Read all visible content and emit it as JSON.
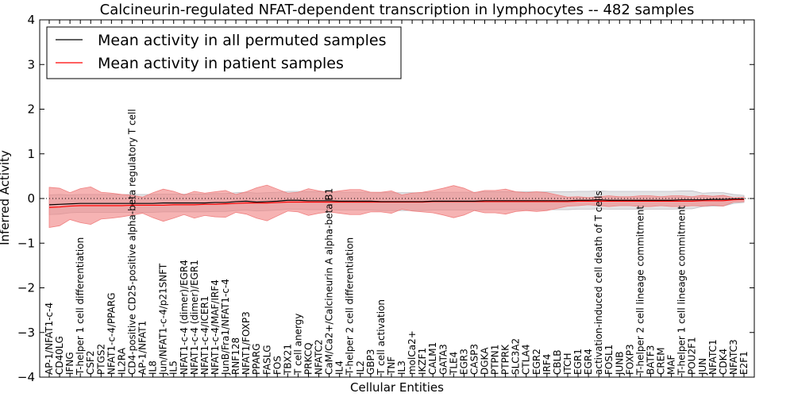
{
  "chart_data": {
    "type": "line",
    "title": "Calcineurin-regulated NFAT-dependent transcription in lymphocytes -- 482 samples",
    "xlabel": "Cellular Entities",
    "ylabel": "Inferred Activity",
    "ylim": [
      -4,
      4
    ],
    "yticks": [
      "−4",
      "−3",
      "−2",
      "−1",
      "0",
      "1",
      "2",
      "3",
      "4"
    ],
    "legend_position": "top-left",
    "categories": [
      "AP-1/NFAT1-c-4",
      "CD40LG",
      "IFNG",
      "T-helper 1 cell differentiation",
      "CSF2",
      "PTGS2",
      "NFAT1-c-4/PPARG",
      "IL2RA",
      "CD4-positive CD25-positive alpha-beta regulatory T cell",
      "AP-1/NFAT1",
      "IL8",
      "Jun/NFAT1-c-4/p21SNFT",
      "IL5",
      "NFAT1-c-4 (dimer)/EGR4",
      "NFAT1-c-4 (dimer)/EGR1",
      "NFAT1-c-4/ICER1",
      "NFAT1-c-4/MAF/IRF4",
      "JunB/Fra1/NFAT1-c-4",
      "RNF128",
      "NFAT1/FOXP3",
      "PPARG",
      "FASLG",
      "FOS",
      "TBX21",
      "T cell anergy",
      "PRKCQ",
      "NFATC2",
      "CaM/Ca2+/Calcineurin A alpha-beta B1",
      "IL4",
      "T-helper 2 cell differentiation",
      "IL2",
      "GBP3",
      "T cell activation",
      "TNF",
      "IL3",
      "molCa2+",
      "IKZF1",
      "CALM1",
      "GATA3",
      "TLE4",
      "EGR3",
      "CASP3",
      "DGKA",
      "PTPN1",
      "PTPRK",
      "SLC3A2",
      "CTLA4",
      "EGR2",
      "IRF4",
      "CBLB",
      "ITCH",
      "EGR1",
      "EGR4",
      "activation-induced cell death of T cells",
      "FOSL1",
      "JUNB",
      "FOXP3",
      "T-helper 2 cell lineage commitment",
      "BATF3",
      "CREM",
      "MAF",
      "T-helper 1 cell lineage commitment",
      "POU2F1",
      "JUN",
      "NFATC1",
      "CDK4",
      "NFATC3",
      "E2F1"
    ],
    "series": [
      {
        "name": "Mean activity in all permuted samples",
        "color": "#000000",
        "band_color": "#c0c0c6",
        "values": [
          -0.14,
          -0.13,
          -0.12,
          -0.11,
          -0.11,
          -0.11,
          -0.11,
          -0.11,
          -0.11,
          -0.11,
          -0.11,
          -0.1,
          -0.1,
          -0.1,
          -0.1,
          -0.1,
          -0.09,
          -0.09,
          -0.07,
          -0.06,
          -0.08,
          -0.07,
          -0.06,
          -0.04,
          -0.04,
          -0.05,
          -0.05,
          -0.05,
          -0.06,
          -0.06,
          -0.06,
          -0.06,
          -0.07,
          -0.07,
          -0.07,
          -0.07,
          -0.07,
          -0.06,
          -0.06,
          -0.06,
          -0.06,
          -0.06,
          -0.05,
          -0.05,
          -0.05,
          -0.05,
          -0.05,
          -0.05,
          -0.05,
          -0.05,
          -0.05,
          -0.04,
          -0.04,
          -0.03,
          -0.04,
          -0.04,
          -0.04,
          -0.04,
          -0.04,
          -0.04,
          -0.04,
          -0.03,
          -0.03,
          -0.03,
          -0.02,
          -0.02,
          -0.01,
          -0.01
        ],
        "std": [
          0.22,
          0.22,
          0.2,
          0.2,
          0.2,
          0.2,
          0.2,
          0.2,
          0.2,
          0.2,
          0.2,
          0.2,
          0.2,
          0.2,
          0.2,
          0.2,
          0.2,
          0.2,
          0.2,
          0.2,
          0.2,
          0.2,
          0.2,
          0.2,
          0.2,
          0.2,
          0.2,
          0.2,
          0.2,
          0.2,
          0.2,
          0.2,
          0.2,
          0.2,
          0.2,
          0.2,
          0.2,
          0.2,
          0.2,
          0.2,
          0.2,
          0.2,
          0.2,
          0.2,
          0.2,
          0.2,
          0.2,
          0.2,
          0.2,
          0.2,
          0.2,
          0.2,
          0.2,
          0.2,
          0.2,
          0.2,
          0.2,
          0.2,
          0.2,
          0.2,
          0.2,
          0.2,
          0.2,
          0.15,
          0.15,
          0.15,
          0.1,
          0.08
        ]
      },
      {
        "name": "Mean activity in patient samples",
        "color": "#ff0000",
        "band_color": "#f08080",
        "values": [
          -0.2,
          -0.19,
          -0.17,
          -0.16,
          -0.16,
          -0.16,
          -0.16,
          -0.16,
          -0.15,
          -0.15,
          -0.15,
          -0.15,
          -0.14,
          -0.14,
          -0.14,
          -0.13,
          -0.13,
          -0.12,
          -0.11,
          -0.1,
          -0.1,
          -0.1,
          -0.09,
          -0.08,
          -0.08,
          -0.08,
          -0.08,
          -0.08,
          -0.08,
          -0.08,
          -0.08,
          -0.08,
          -0.08,
          -0.08,
          -0.08,
          -0.08,
          -0.08,
          -0.07,
          -0.07,
          -0.07,
          -0.07,
          -0.07,
          -0.07,
          -0.07,
          -0.07,
          -0.07,
          -0.07,
          -0.07,
          -0.07,
          -0.07,
          -0.07,
          -0.06,
          -0.06,
          -0.06,
          -0.06,
          -0.06,
          -0.06,
          -0.06,
          -0.06,
          -0.06,
          -0.06,
          -0.06,
          -0.06,
          -0.05,
          -0.05,
          -0.05,
          -0.03,
          -0.02
        ],
        "std": [
          0.45,
          0.42,
          0.3,
          0.38,
          0.42,
          0.3,
          0.28,
          0.25,
          0.22,
          0.18,
          0.28,
          0.36,
          0.3,
          0.22,
          0.3,
          0.25,
          0.28,
          0.3,
          0.2,
          0.25,
          0.34,
          0.4,
          0.3,
          0.2,
          0.22,
          0.3,
          0.25,
          0.22,
          0.25,
          0.28,
          0.28,
          0.22,
          0.22,
          0.25,
          0.16,
          0.2,
          0.22,
          0.25,
          0.3,
          0.36,
          0.3,
          0.2,
          0.25,
          0.25,
          0.28,
          0.22,
          0.2,
          0.22,
          0.2,
          0.15,
          0.1,
          0.1,
          0.08,
          0.1,
          0.12,
          0.1,
          0.1,
          0.12,
          0.12,
          0.1,
          0.12,
          0.12,
          0.1,
          0.12,
          0.1,
          0.12,
          0.05,
          0.05
        ]
      }
    ]
  }
}
